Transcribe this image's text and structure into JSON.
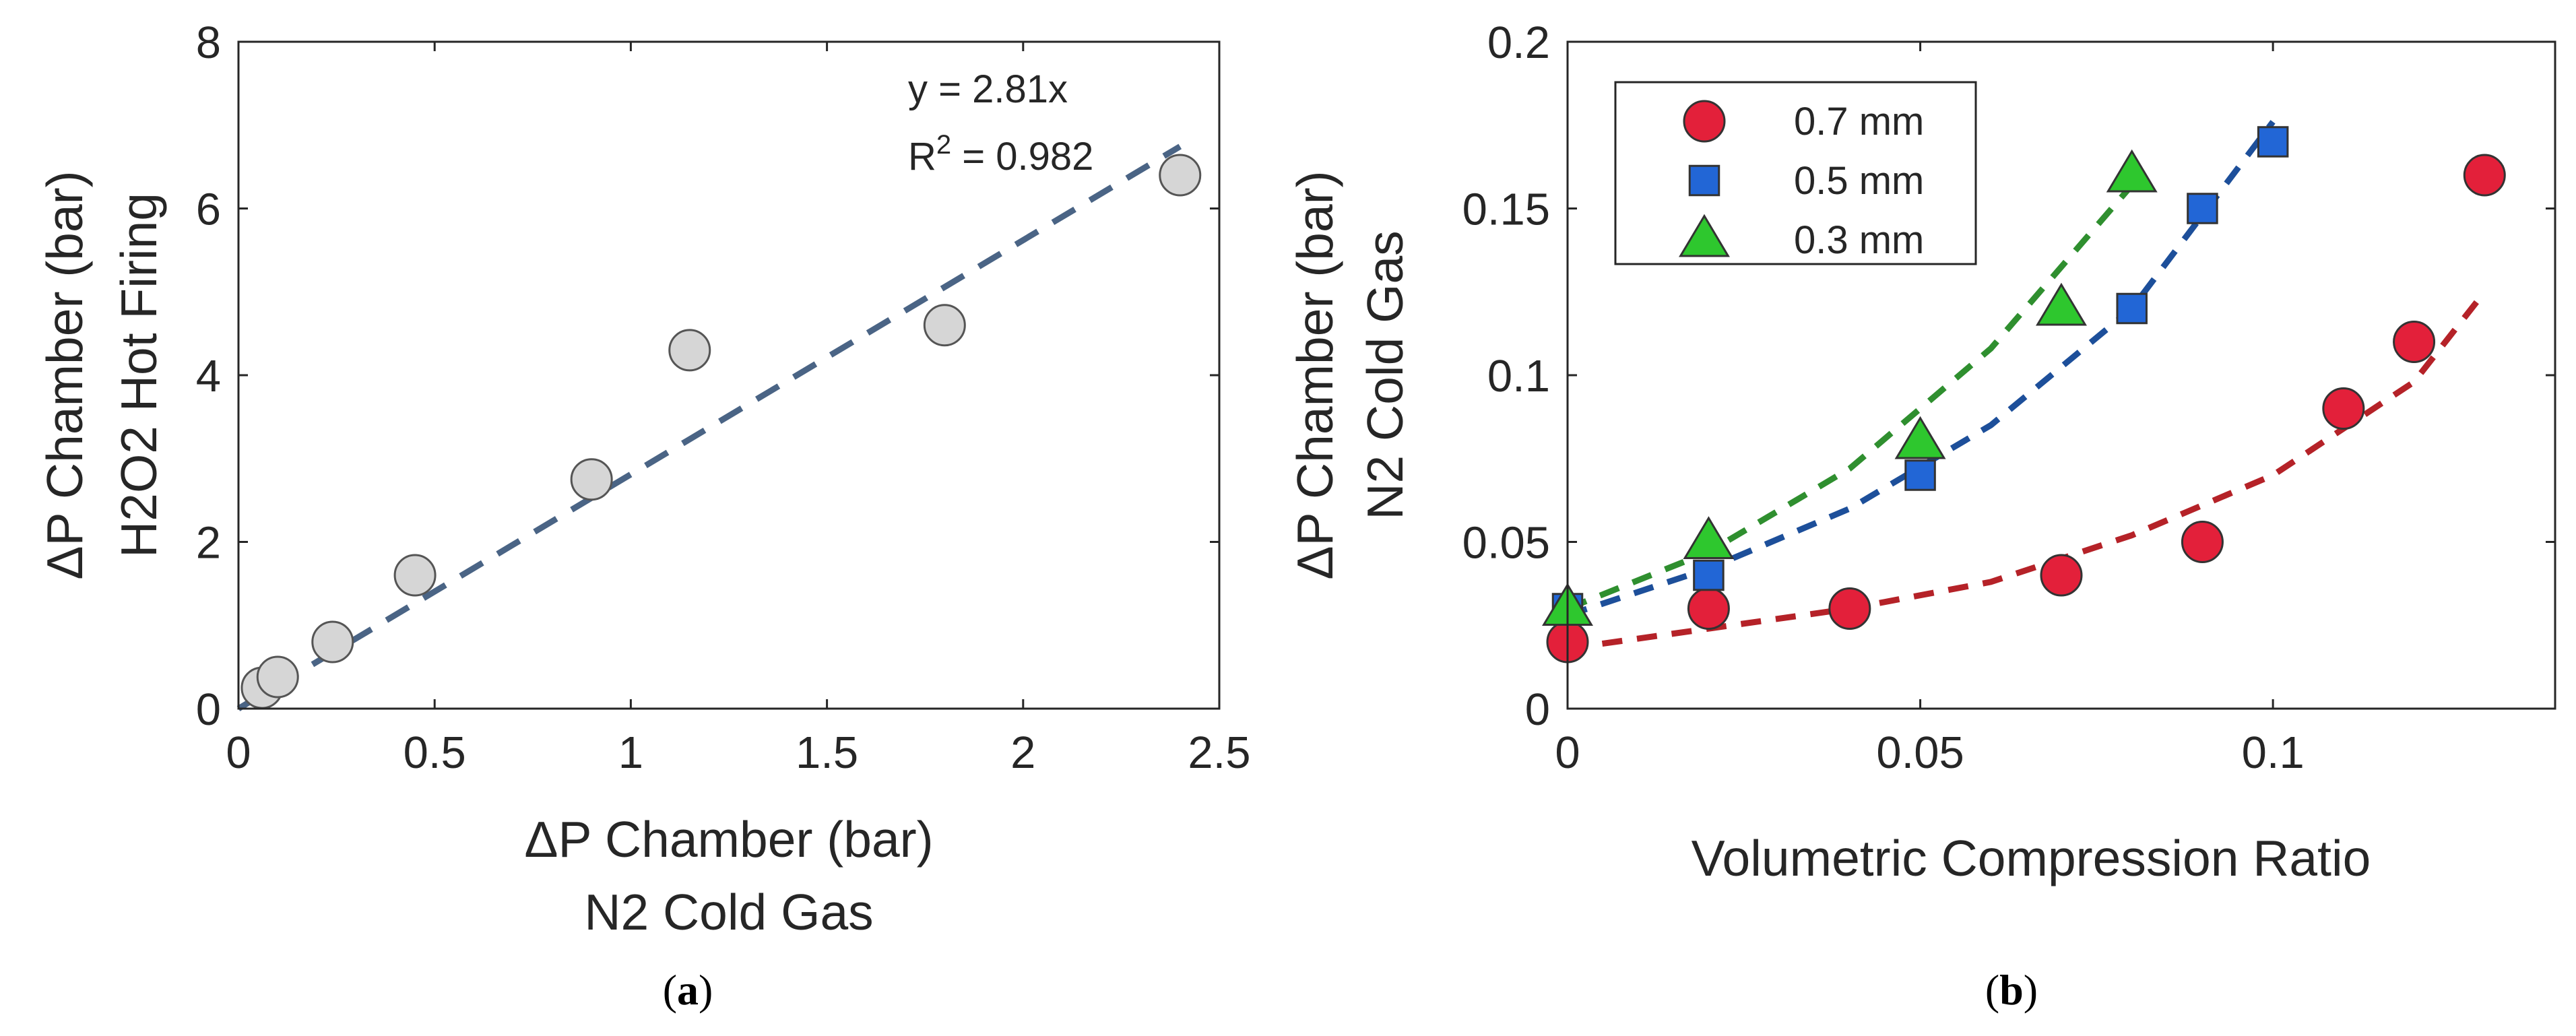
{
  "chart_data": [
    {
      "type": "scatter",
      "panel_label": "a",
      "xlabel": [
        "ΔP Chamber (bar)",
        "N2 Cold Gas"
      ],
      "ylabel": [
        "ΔP Chamber (bar)",
        "H2O2 Hot Firing"
      ],
      "xlim": [
        0,
        2.5
      ],
      "ylim": [
        0,
        8
      ],
      "xticks": [
        0,
        0.5,
        1,
        1.5,
        2,
        2.5
      ],
      "yticks": [
        0,
        2,
        4,
        6,
        8
      ],
      "xtick_labels": [
        "0",
        "0.5",
        "1",
        "1.5",
        "2",
        "2.5"
      ],
      "ytick_labels": [
        "0",
        "2",
        "4",
        "6",
        "8"
      ],
      "grid": false,
      "annotation": {
        "equation": "y = 2.81x",
        "r2_prefix": "R",
        "r2_sup": "2",
        "r2_value": " = 0.982"
      },
      "series": [
        {
          "name": "data",
          "marker": "circle",
          "color": "#d6d6d6",
          "edge_color": "#555555",
          "x": [
            0.06,
            0.1,
            0.24,
            0.45,
            0.9,
            1.15,
            1.8,
            2.4
          ],
          "y": [
            0.25,
            0.38,
            0.8,
            1.6,
            2.75,
            4.3,
            4.6,
            6.4
          ]
        }
      ],
      "fit": {
        "label": "y = 2.81x",
        "slope": 2.81,
        "x_range": [
          0,
          2.4
        ],
        "color": "#4a6485",
        "style": "dashed"
      }
    },
    {
      "type": "scatter",
      "panel_label": "b",
      "xlabel": [
        "Volumetric Compression Ratio"
      ],
      "ylabel": [
        "ΔP Chamber (bar)",
        "N2 Cold Gas"
      ],
      "xlim": [
        0,
        0.14
      ],
      "ylim": [
        0,
        0.2
      ],
      "xticks": [
        0,
        0.05,
        0.1
      ],
      "yticks": [
        0,
        0.05,
        0.1,
        0.15,
        0.2
      ],
      "xtick_labels": [
        "0",
        "0.05",
        "0.1"
      ],
      "ytick_labels": [
        "0",
        "0.05",
        "0.1",
        "0.15",
        "0.2"
      ],
      "grid": false,
      "legend_position": "top-left",
      "series": [
        {
          "name": "0.7 mm",
          "marker": "circle",
          "color": "#e3203a",
          "fit_color": "#b52228",
          "x": [
            0,
            0.02,
            0.04,
            0.07,
            0.09,
            0.11,
            0.12,
            0.13
          ],
          "y": [
            0.02,
            0.03,
            0.03,
            0.04,
            0.05,
            0.09,
            0.11,
            0.16
          ],
          "fit_x": [
            0,
            0.02,
            0.04,
            0.06,
            0.08,
            0.1,
            0.12,
            0.13
          ],
          "fit_y": [
            0.018,
            0.024,
            0.03,
            0.038,
            0.052,
            0.07,
            0.098,
            0.125
          ]
        },
        {
          "name": "0.5 mm",
          "marker": "square",
          "color": "#2266d6",
          "fit_color": "#1d4f9a",
          "x": [
            0,
            0.02,
            0.05,
            0.08,
            0.09,
            0.1
          ],
          "y": [
            0.03,
            0.04,
            0.07,
            0.12,
            0.15,
            0.17
          ],
          "fit_x": [
            0,
            0.02,
            0.04,
            0.06,
            0.08,
            0.1
          ],
          "fit_y": [
            0.028,
            0.042,
            0.06,
            0.085,
            0.12,
            0.176
          ]
        },
        {
          "name": "0.3 mm",
          "marker": "triangle",
          "color": "#2ec72e",
          "fit_color": "#2f8f2f",
          "x": [
            0,
            0.02,
            0.05,
            0.07,
            0.08
          ],
          "y": [
            0.03,
            0.05,
            0.08,
            0.12,
            0.16
          ],
          "fit_x": [
            0,
            0.02,
            0.04,
            0.06,
            0.08
          ],
          "fit_y": [
            0.03,
            0.047,
            0.072,
            0.108,
            0.157
          ]
        }
      ]
    }
  ],
  "captions": [
    {
      "open": "(",
      "label": "a",
      "close": ")"
    },
    {
      "open": "(",
      "label": "b",
      "close": ")"
    }
  ]
}
